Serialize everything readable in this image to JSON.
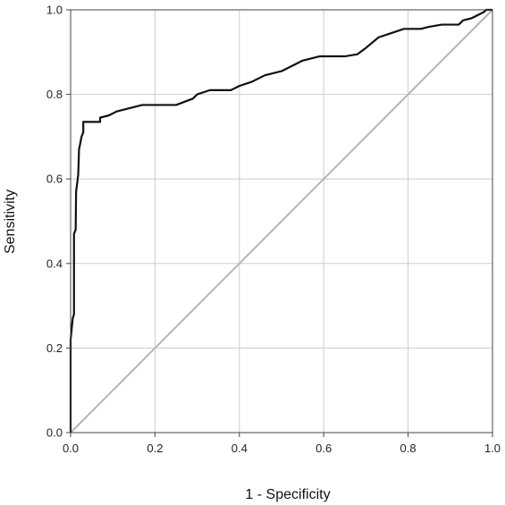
{
  "chart_data": {
    "type": "line",
    "title": "",
    "xlabel": "1 - Specificity",
    "ylabel": "Sensitivity",
    "xlim": [
      0.0,
      1.0
    ],
    "ylim": [
      0.0,
      1.0
    ],
    "x_ticks": [
      "0.0",
      "0.2",
      "0.4",
      "0.6",
      "0.8",
      "1.0"
    ],
    "y_ticks": [
      "0.0",
      "0.2",
      "0.4",
      "0.6",
      "0.8",
      "1.0"
    ],
    "grid": true,
    "legend": "none",
    "series": [
      {
        "color": "#111111",
        "points": [
          [
            0.0,
            0.0
          ],
          [
            0.0,
            0.22
          ],
          [
            0.005,
            0.27
          ],
          [
            0.008,
            0.28
          ],
          [
            0.008,
            0.47
          ],
          [
            0.012,
            0.48
          ],
          [
            0.013,
            0.57
          ],
          [
            0.018,
            0.61
          ],
          [
            0.02,
            0.67
          ],
          [
            0.026,
            0.7
          ],
          [
            0.03,
            0.71
          ],
          [
            0.03,
            0.735
          ],
          [
            0.07,
            0.735
          ],
          [
            0.07,
            0.745
          ],
          [
            0.09,
            0.75
          ],
          [
            0.11,
            0.76
          ],
          [
            0.13,
            0.765
          ],
          [
            0.15,
            0.77
          ],
          [
            0.17,
            0.775
          ],
          [
            0.25,
            0.775
          ],
          [
            0.29,
            0.79
          ],
          [
            0.3,
            0.8
          ],
          [
            0.33,
            0.81
          ],
          [
            0.36,
            0.81
          ],
          [
            0.38,
            0.81
          ],
          [
            0.4,
            0.82
          ],
          [
            0.43,
            0.83
          ],
          [
            0.46,
            0.845
          ],
          [
            0.48,
            0.85
          ],
          [
            0.5,
            0.855
          ],
          [
            0.52,
            0.865
          ],
          [
            0.55,
            0.88
          ],
          [
            0.59,
            0.89
          ],
          [
            0.65,
            0.89
          ],
          [
            0.68,
            0.895
          ],
          [
            0.7,
            0.91
          ],
          [
            0.73,
            0.935
          ],
          [
            0.76,
            0.945
          ],
          [
            0.79,
            0.955
          ],
          [
            0.82,
            0.955
          ],
          [
            0.83,
            0.955
          ],
          [
            0.85,
            0.96
          ],
          [
            0.88,
            0.965
          ],
          [
            0.92,
            0.965
          ],
          [
            0.93,
            0.975
          ],
          [
            0.95,
            0.98
          ],
          [
            0.97,
            0.99
          ],
          [
            0.98,
            0.995
          ],
          [
            0.985,
            1.0
          ],
          [
            1.0,
            1.0
          ]
        ]
      },
      {
        "color": "#b5b5b5",
        "points": [
          [
            0.0,
            0.0
          ],
          [
            1.0,
            1.0
          ]
        ]
      }
    ]
  },
  "colors": {
    "grid": "#cccccc",
    "frame": "#444444",
    "roc_curve": "#111111",
    "reference_line": "#b5b5b5"
  }
}
